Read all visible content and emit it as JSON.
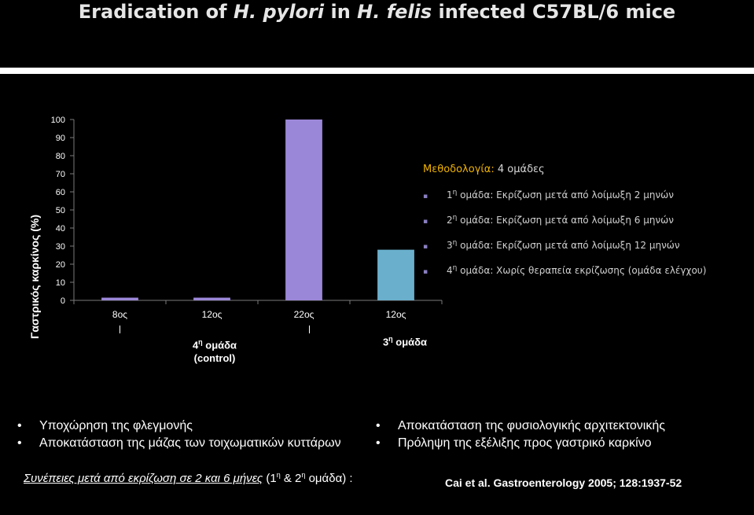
{
  "title": {
    "pre": "Eradication of ",
    "italic1": "H. pylori",
    "mid": " in ",
    "italic2": "H. felis",
    "post": " infected C57BL/6 mice"
  },
  "chart_data": {
    "type": "bar",
    "categories": [
      "8ος",
      "12ος",
      "22ος",
      "12ος"
    ],
    "values": [
      1.5,
      1.5,
      100,
      28
    ],
    "colors": [
      "#9b87d8",
      "#9b87d8",
      "#9b87d8",
      "#6ab0cc"
    ],
    "ylabel": "Γαστρικός καρκίνος (%)",
    "yticks": [
      0,
      10,
      20,
      30,
      40,
      50,
      60,
      70,
      80,
      90,
      100
    ],
    "ylim": [
      0,
      100
    ],
    "grid": false
  },
  "groups": {
    "g4": {
      "num": "4",
      "sup": "η",
      "word": " ομάδα",
      "line2": "(control)"
    },
    "g3": {
      "num": "3",
      "sup": "η",
      "word": " ομάδα"
    }
  },
  "methodology": {
    "label": "Μεθοδολογία:",
    "value": " 4 ομάδες",
    "items": [
      {
        "num": "1",
        "sup": "η",
        "text": " ομάδα: Εκρίζωση μετά από λοίμωξη 2 μηνών"
      },
      {
        "num": "2",
        "sup": "η",
        "text": " ομάδα: Εκρίζωση μετά από λοίμωξη 6 μηνών"
      },
      {
        "num": "3",
        "sup": "η",
        "text": " ομάδα: Εκρίζωση μετά από λοίμωξη 12 μηνών"
      },
      {
        "num": "4",
        "sup": "η",
        "text": " ομάδα: Χωρίς θεραπεία εκρίζωσης (ομάδα ελέγχου)"
      }
    ]
  },
  "consequences": {
    "heading_underlined": "Συνέπειες μετά από εκρίζωση σε 2 και 6 μήνες",
    "heading_p1": " (1",
    "heading_sup1": "η",
    "heading_p2": " & 2",
    "heading_sup2": "η",
    "heading_p3": " ομάδα) :",
    "left": [
      "Υποχώρηση της φλεγμονής",
      "Αποκατάσταση της μάζας των τοιχωματικών κυττάρων"
    ],
    "right": [
      "Αποκατάσταση της φυσιολογικής αρχιτεκτονικής",
      "Πρόληψη της εξέλιξης προς γαστρικό καρκίνο"
    ]
  },
  "citation": "Cai et al. Gastroenterology 2005; 128:1937-52"
}
